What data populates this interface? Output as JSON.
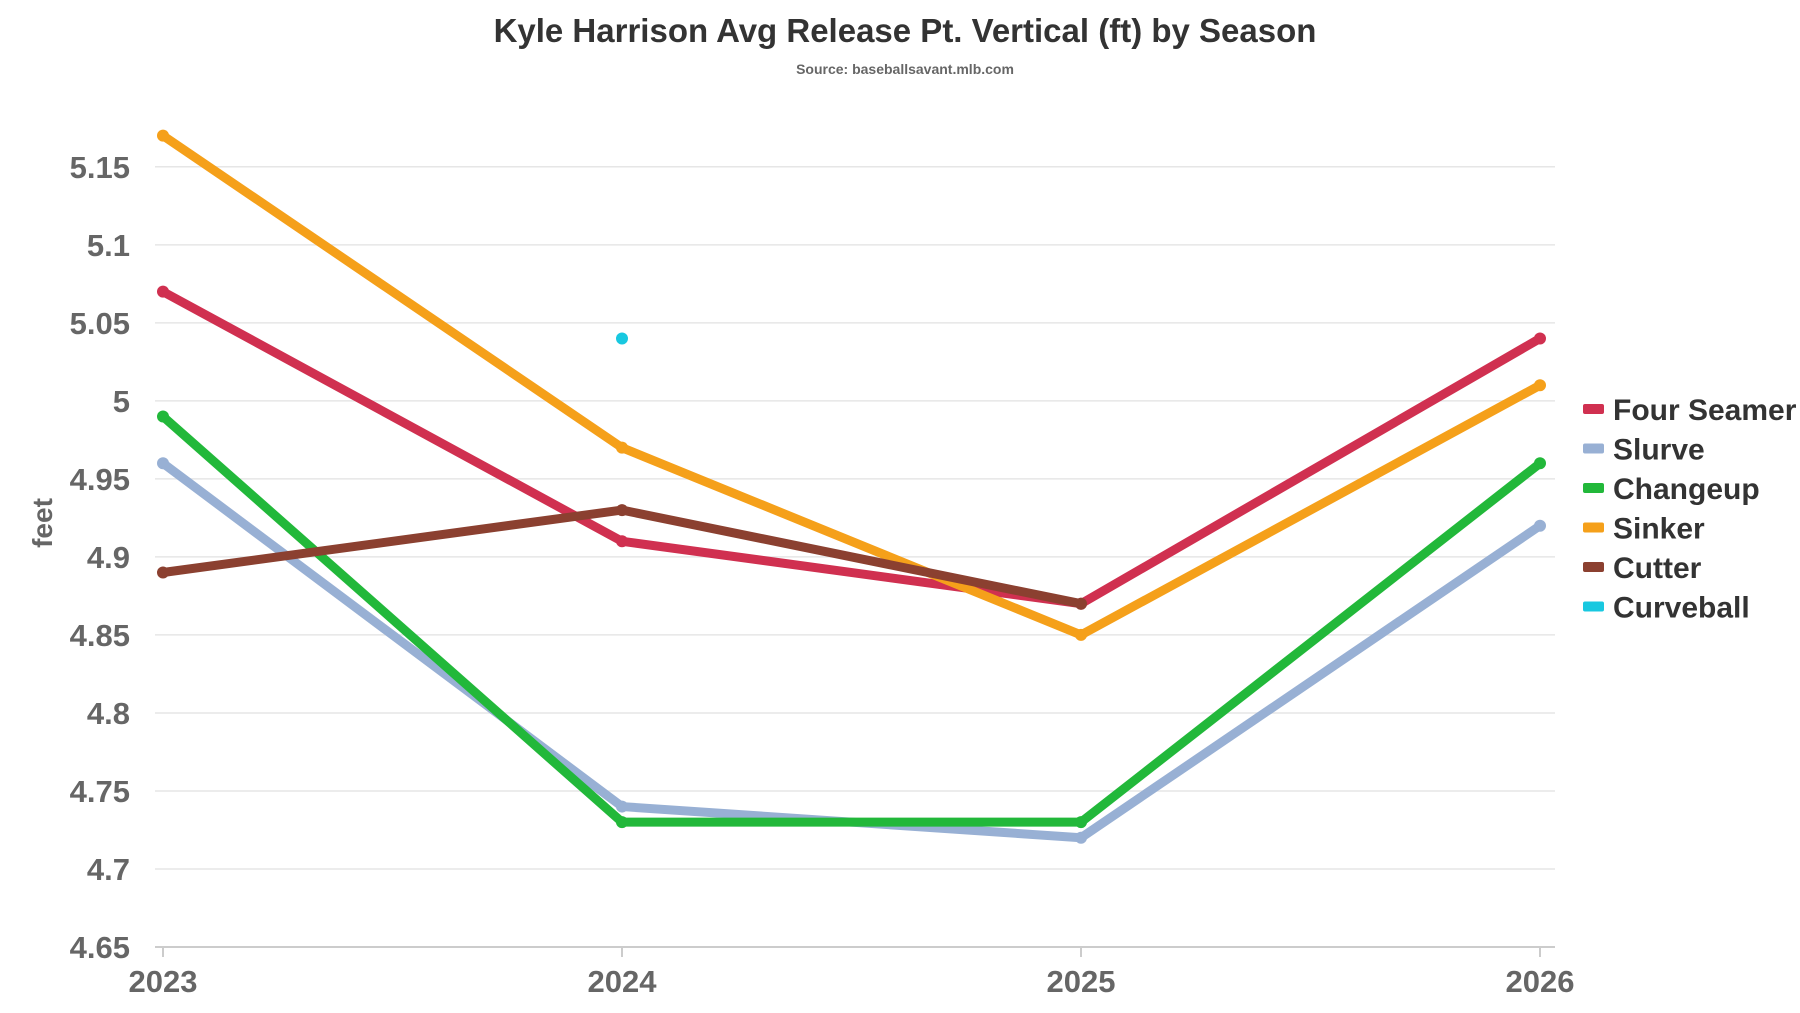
{
  "chart_data": {
    "type": "line",
    "title": "Kyle Harrison Avg Release Pt. Vertical (ft) by Season",
    "subtitle": "Source: baseballsavant.mlb.com",
    "xlabel": "",
    "ylabel": "feet",
    "categories": [
      "2023",
      "2024",
      "2025",
      "2026"
    ],
    "ylim": [
      4.65,
      5.18
    ],
    "yticks": [
      4.65,
      4.7,
      4.75,
      4.8,
      4.85,
      4.9,
      4.95,
      5,
      5.05,
      5.1,
      5.15
    ],
    "ytick_labels": [
      "4.65",
      "4.7",
      "4.75",
      "4.8",
      "4.85",
      "4.9",
      "4.95",
      "5",
      "5.05",
      "5.1",
      "5.15"
    ],
    "grid": true,
    "legend_position": "right",
    "series": [
      {
        "name": "Four Seamer",
        "color": "#d03050",
        "values": [
          5.07,
          4.91,
          4.87,
          5.04
        ]
      },
      {
        "name": "Slurve",
        "color": "#98b0d4",
        "values": [
          4.96,
          4.74,
          4.72,
          4.92
        ]
      },
      {
        "name": "Changeup",
        "color": "#22b83a",
        "values": [
          4.99,
          4.73,
          4.73,
          4.96
        ]
      },
      {
        "name": "Sinker",
        "color": "#f5a01a",
        "values": [
          5.17,
          4.97,
          4.85,
          5.01
        ]
      },
      {
        "name": "Cutter",
        "color": "#8b4030",
        "values": [
          4.89,
          4.93,
          4.87,
          null
        ]
      },
      {
        "name": "Curveball",
        "color": "#18c8e0",
        "values": [
          null,
          5.04,
          null,
          null
        ]
      }
    ]
  }
}
